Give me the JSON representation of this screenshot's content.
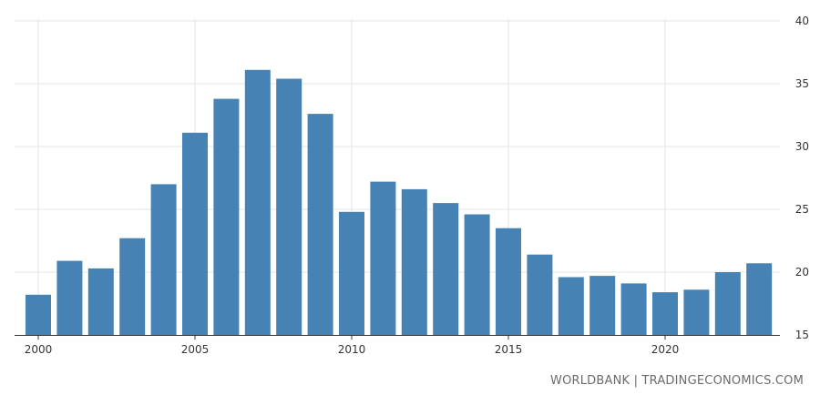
{
  "source_credit": "WORLDBANK | TRADINGECONOMICS.COM",
  "colors": {
    "bar": "#4682b4",
    "grid": "#e6e6e6",
    "axis": "#333333"
  },
  "chart_data": {
    "type": "bar",
    "x": [
      2000,
      2001,
      2002,
      2003,
      2004,
      2005,
      2006,
      2007,
      2008,
      2009,
      2010,
      2011,
      2012,
      2013,
      2014,
      2015,
      2016,
      2017,
      2018,
      2019,
      2020,
      2021,
      2022,
      2023
    ],
    "values": [
      18.2,
      20.9,
      20.3,
      22.7,
      27.0,
      31.1,
      33.8,
      36.1,
      35.4,
      32.6,
      24.8,
      27.2,
      26.6,
      25.5,
      24.6,
      23.5,
      21.4,
      19.6,
      19.7,
      19.1,
      18.4,
      18.6,
      20.0,
      20.7
    ],
    "xticks": [
      "2000",
      "2005",
      "2010",
      "2015",
      "2020"
    ],
    "yticks": [
      "15",
      "20",
      "25",
      "30",
      "35",
      "40"
    ],
    "ylim": [
      15,
      40
    ],
    "grid": true,
    "y_axis_side": "right"
  }
}
